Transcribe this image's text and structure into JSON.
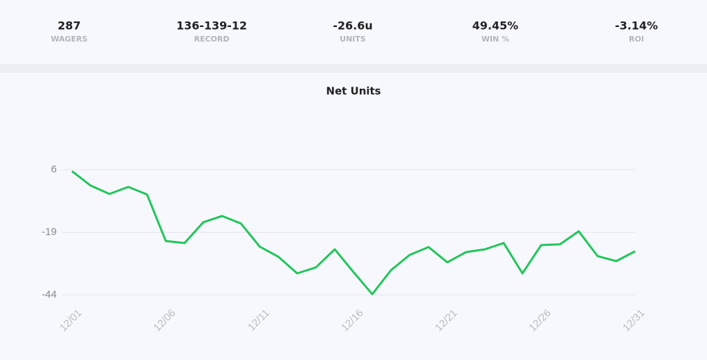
{
  "stats": [
    {
      "value": "287",
      "label": "WAGERS"
    },
    {
      "value": "136-139-12",
      "label": "RECORD"
    },
    {
      "value": "-26.6u",
      "label": "UNITS"
    },
    {
      "value": "49.45%",
      "label": "WIN %"
    },
    {
      "value": "-3.14%",
      "label": "ROI"
    }
  ],
  "chart_data": {
    "type": "line",
    "title": "Net Units",
    "categories": [
      "12/01",
      null,
      null,
      null,
      null,
      "12/06",
      null,
      null,
      null,
      null,
      "12/11",
      null,
      null,
      null,
      null,
      "12/16",
      null,
      null,
      null,
      null,
      "12/21",
      null,
      null,
      null,
      null,
      "12/26",
      null,
      null,
      null,
      null,
      "12/31"
    ],
    "series": [
      {
        "name": "Net Units",
        "color": "#1fc65a",
        "values": [
          5.4,
          -0.4,
          -3.7,
          -0.9,
          -3.9,
          -22.5,
          -23.3,
          -15.0,
          -12.5,
          -15.5,
          -24.7,
          -28.8,
          -35.4,
          -33.0,
          -25.8,
          -34.9,
          -43.7,
          -34.1,
          -28.0,
          -24.9,
          -31.0,
          -26.9,
          -25.8,
          -23.3,
          -35.4,
          -24.1,
          -23.8,
          -18.6,
          -28.5,
          -30.5,
          -26.6
        ]
      }
    ],
    "ylim": [
      -44,
      6
    ],
    "yticks": [
      6,
      -19,
      -44
    ],
    "grid": true
  }
}
